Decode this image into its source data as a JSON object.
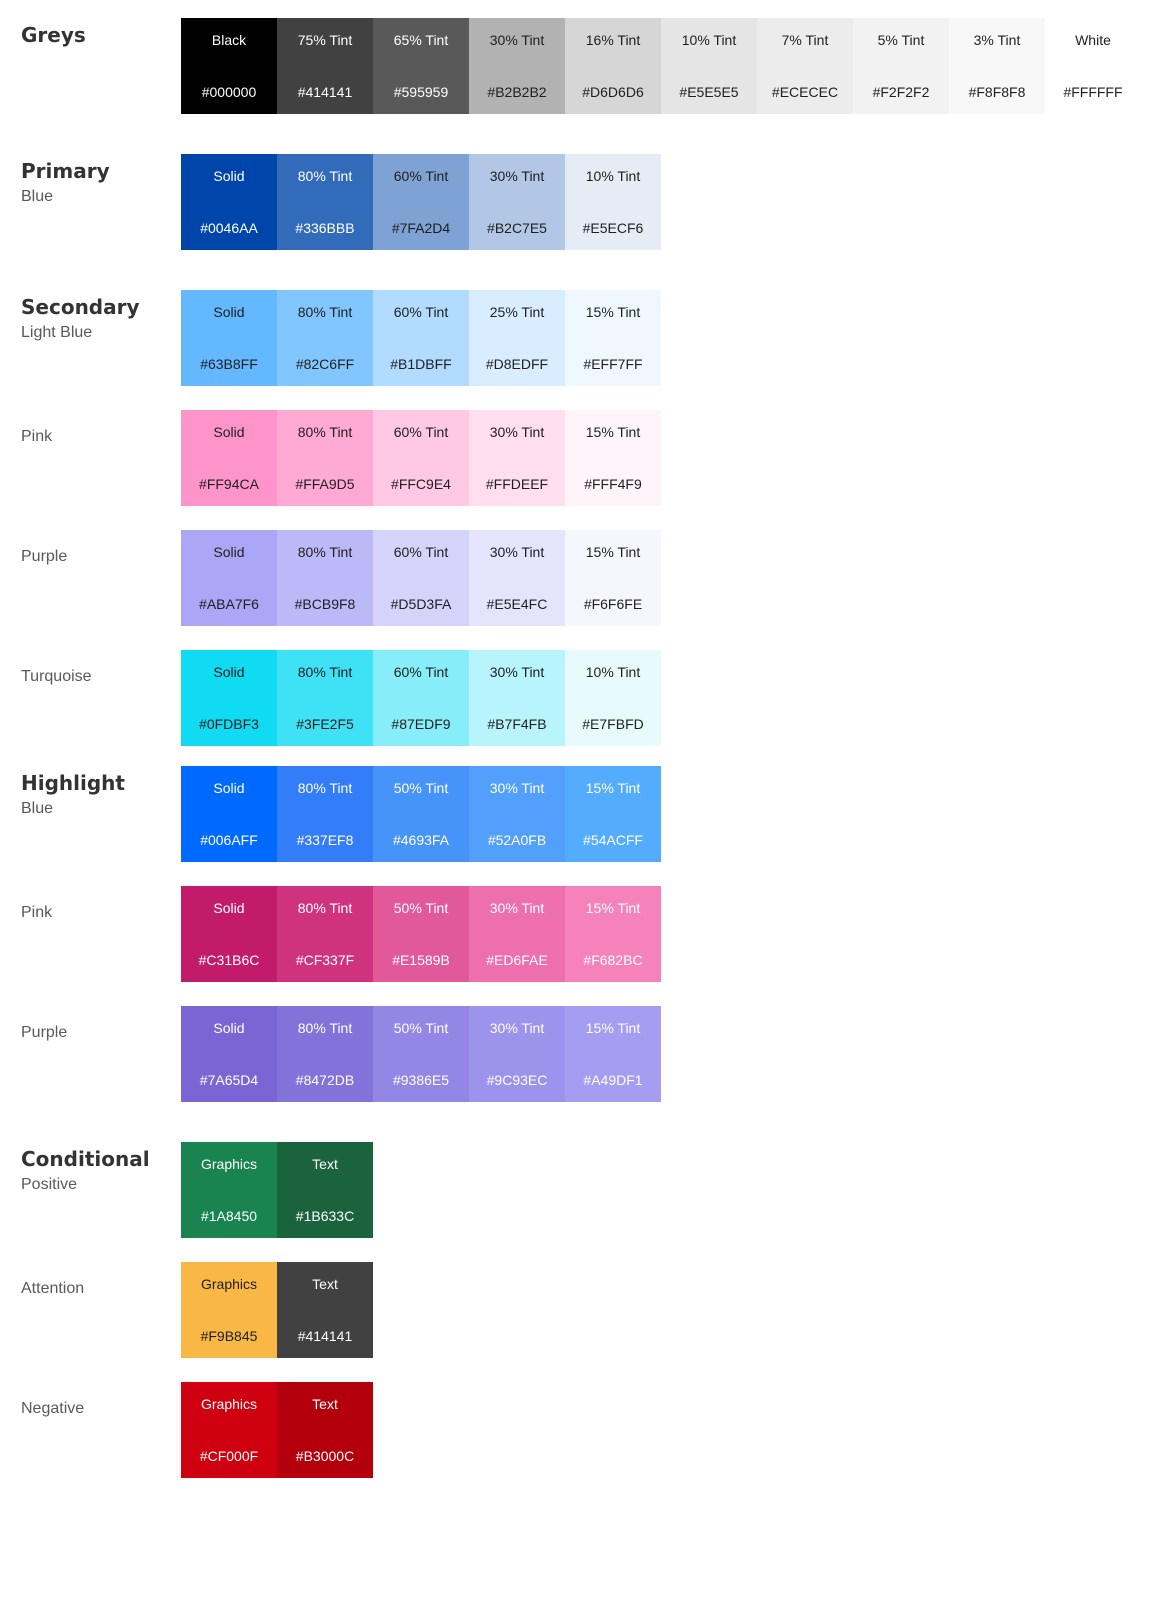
{
  "groups": [
    {
      "title": "Greys",
      "subtitle": "",
      "swatches": [
        {
          "name": "Black",
          "hex": "#000000",
          "bg": "#000000",
          "fg": "#FFFFFF"
        },
        {
          "name": "75% Tint",
          "hex": "#414141",
          "bg": "#414141",
          "fg": "#FFFFFF"
        },
        {
          "name": "65% Tint",
          "hex": "#595959",
          "bg": "#595959",
          "fg": "#FFFFFF"
        },
        {
          "name": "30% Tint",
          "hex": "#B2B2B2",
          "bg": "#B2B2B2",
          "fg": "#1F1F1F"
        },
        {
          "name": "16% Tint",
          "hex": "#D6D6D6",
          "bg": "#D6D6D6",
          "fg": "#1F1F1F"
        },
        {
          "name": "10% Tint",
          "hex": "#E5E5E5",
          "bg": "#E5E5E5",
          "fg": "#1F1F1F"
        },
        {
          "name": "7% Tint",
          "hex": "#ECECEC",
          "bg": "#ECECEC",
          "fg": "#1F1F1F"
        },
        {
          "name": "5% Tint",
          "hex": "#F2F2F2",
          "bg": "#F2F2F2",
          "fg": "#1F1F1F"
        },
        {
          "name": "3% Tint",
          "hex": "#F8F8F8",
          "bg": "#F8F8F8",
          "fg": "#1F1F1F"
        },
        {
          "name": "White",
          "hex": "#FFFFFF",
          "bg": "#FFFFFF",
          "fg": "#1F1F1F"
        }
      ]
    },
    {
      "title": "Primary",
      "subtitle": "Blue",
      "swatches": [
        {
          "name": "Solid",
          "hex": "#0046AA",
          "bg": "#0046AA",
          "fg": "#FFFFFF"
        },
        {
          "name": "80% Tint",
          "hex": "#336BBB",
          "bg": "#336BBB",
          "fg": "#FFFFFF"
        },
        {
          "name": "60% Tint",
          "hex": "#7FA2D4",
          "bg": "#7FA2D4",
          "fg": "#1F1F1F"
        },
        {
          "name": "30% Tint",
          "hex": "#B2C7E5",
          "bg": "#B2C7E5",
          "fg": "#1F1F1F"
        },
        {
          "name": "10% Tint",
          "hex": "#E5ECF6",
          "bg": "#E5ECF6",
          "fg": "#1F1F1F"
        }
      ]
    },
    {
      "title": "Secondary",
      "subtitle": "Light Blue",
      "swatches": [
        {
          "name": "Solid",
          "hex": "#63B8FF",
          "bg": "#63B8FF",
          "fg": "#1F1F1F"
        },
        {
          "name": "80% Tint",
          "hex": "#82C6FF",
          "bg": "#82C6FF",
          "fg": "#1F1F1F"
        },
        {
          "name": "60% Tint",
          "hex": "#B1DBFF",
          "bg": "#B1DBFF",
          "fg": "#1F1F1F"
        },
        {
          "name": "25% Tint",
          "hex": "#D8EDFF",
          "bg": "#D8EDFF",
          "fg": "#1F1F1F"
        },
        {
          "name": "15% Tint",
          "hex": "#EFF7FF",
          "bg": "#EFF7FF",
          "fg": "#1F1F1F"
        }
      ]
    },
    {
      "title": "",
      "subtitle": "Pink",
      "swatches": [
        {
          "name": "Solid",
          "hex": "#FF94CA",
          "bg": "#FF94CA",
          "fg": "#1F1F1F"
        },
        {
          "name": "80% Tint",
          "hex": "#FFA9D5",
          "bg": "#FFA9D5",
          "fg": "#1F1F1F"
        },
        {
          "name": "60% Tint",
          "hex": "#FFC9E4",
          "bg": "#FFC9E4",
          "fg": "#1F1F1F"
        },
        {
          "name": "30% Tint",
          "hex": "#FFDEEF",
          "bg": "#FFDEEF",
          "fg": "#1F1F1F"
        },
        {
          "name": "15% Tint",
          "hex": "#FFF4F9",
          "bg": "#FFF4F9",
          "fg": "#1F1F1F"
        }
      ]
    },
    {
      "title": "",
      "subtitle": "Purple",
      "swatches": [
        {
          "name": "Solid",
          "hex": "#ABA7F6",
          "bg": "#ABA7F6",
          "fg": "#1F1F1F"
        },
        {
          "name": "80% Tint",
          "hex": "#BCB9F8",
          "bg": "#BCB9F8",
          "fg": "#1F1F1F"
        },
        {
          "name": "60% Tint",
          "hex": "#D5D3FA",
          "bg": "#D5D3FA",
          "fg": "#1F1F1F"
        },
        {
          "name": "30% Tint",
          "hex": "#E5E4FC",
          "bg": "#E5E4FC",
          "fg": "#1F1F1F"
        },
        {
          "name": "15% Tint",
          "hex": "#F6F6FE",
          "bg": "#F6F6FE",
          "fg": "#1F1F1F"
        }
      ]
    },
    {
      "title": "",
      "subtitle": "Turquoise",
      "swatches": [
        {
          "name": "Solid",
          "hex": "#0FDBF3",
          "bg": "#0FDBF3",
          "fg": "#1F1F1F"
        },
        {
          "name": "80% Tint",
          "hex": "#3FE2F5",
          "bg": "#3FE2F5",
          "fg": "#1F1F1F"
        },
        {
          "name": "60% Tint",
          "hex": "#87EDF9",
          "bg": "#87EDF9",
          "fg": "#1F1F1F"
        },
        {
          "name": "30% Tint",
          "hex": "#B7F4FB",
          "bg": "#B7F4FB",
          "fg": "#1F1F1F"
        },
        {
          "name": "10% Tint",
          "hex": "#E7FBFD",
          "bg": "#E7FBFD",
          "fg": "#1F1F1F"
        }
      ]
    },
    {
      "title": "Highlight",
      "subtitle": "Blue",
      "swatches": [
        {
          "name": "Solid",
          "hex": "#006AFF",
          "bg": "#006AFF",
          "fg": "#FFFFFF"
        },
        {
          "name": "80% Tint",
          "hex": "#337EF8",
          "bg": "#337EF8",
          "fg": "#FFFFFF"
        },
        {
          "name": "50% Tint",
          "hex": "#4693FA",
          "bg": "#4693FA",
          "fg": "#FFFFFF"
        },
        {
          "name": "30% Tint",
          "hex": "#52A0FB",
          "bg": "#52A0FB",
          "fg": "#FFFFFF"
        },
        {
          "name": "15% Tint",
          "hex": "#54ACFF",
          "bg": "#54ACFF",
          "fg": "#FFFFFF"
        }
      ]
    },
    {
      "title": "",
      "subtitle": "Pink",
      "swatches": [
        {
          "name": "Solid",
          "hex": "#C31B6C",
          "bg": "#C31B6C",
          "fg": "#FFFFFF"
        },
        {
          "name": "80% Tint",
          "hex": "#CF337F",
          "bg": "#CF337F",
          "fg": "#FFFFFF"
        },
        {
          "name": "50% Tint",
          "hex": "#E1589B",
          "bg": "#E1589B",
          "fg": "#FFFFFF"
        },
        {
          "name": "30% Tint",
          "hex": "#ED6FAE",
          "bg": "#ED6FAE",
          "fg": "#FFFFFF"
        },
        {
          "name": "15% Tint",
          "hex": "#F682BC",
          "bg": "#F682BC",
          "fg": "#FFFFFF"
        }
      ]
    },
    {
      "title": "",
      "subtitle": "Purple",
      "swatches": [
        {
          "name": "Solid",
          "hex": "#7A65D4",
          "bg": "#7A65D4",
          "fg": "#FFFFFF"
        },
        {
          "name": "80% Tint",
          "hex": "#8472DB",
          "bg": "#8472DB",
          "fg": "#FFFFFF"
        },
        {
          "name": "50% Tint",
          "hex": "#9386E5",
          "bg": "#9386E5",
          "fg": "#FFFFFF"
        },
        {
          "name": "30% Tint",
          "hex": "#9C93EC",
          "bg": "#9C93EC",
          "fg": "#FFFFFF"
        },
        {
          "name": "15% Tint",
          "hex": "#A49DF1",
          "bg": "#A49DF1",
          "fg": "#FFFFFF"
        }
      ]
    },
    {
      "title": "Conditional",
      "subtitle": "Positive",
      "swatches": [
        {
          "name": "Graphics",
          "hex": "#1A8450",
          "bg": "#1A8450",
          "fg": "#FFFFFF"
        },
        {
          "name": "Text",
          "hex": "#1B633C",
          "bg": "#1B633C",
          "fg": "#FFFFFF"
        }
      ]
    },
    {
      "title": "",
      "subtitle": "Attention",
      "swatches": [
        {
          "name": "Graphics",
          "hex": "#F9B845",
          "bg": "#F9B845",
          "fg": "#1F1F1F"
        },
        {
          "name": "Text",
          "hex": "#414141",
          "bg": "#414141",
          "fg": "#FFFFFF"
        }
      ]
    },
    {
      "title": "",
      "subtitle": "Negative",
      "swatches": [
        {
          "name": "Graphics",
          "hex": "#CF000F",
          "bg": "#CF000F",
          "fg": "#FFFFFF"
        },
        {
          "name": "Text",
          "hex": "#B3000C",
          "bg": "#B3000C",
          "fg": "#FFFFFF"
        }
      ]
    }
  ]
}
